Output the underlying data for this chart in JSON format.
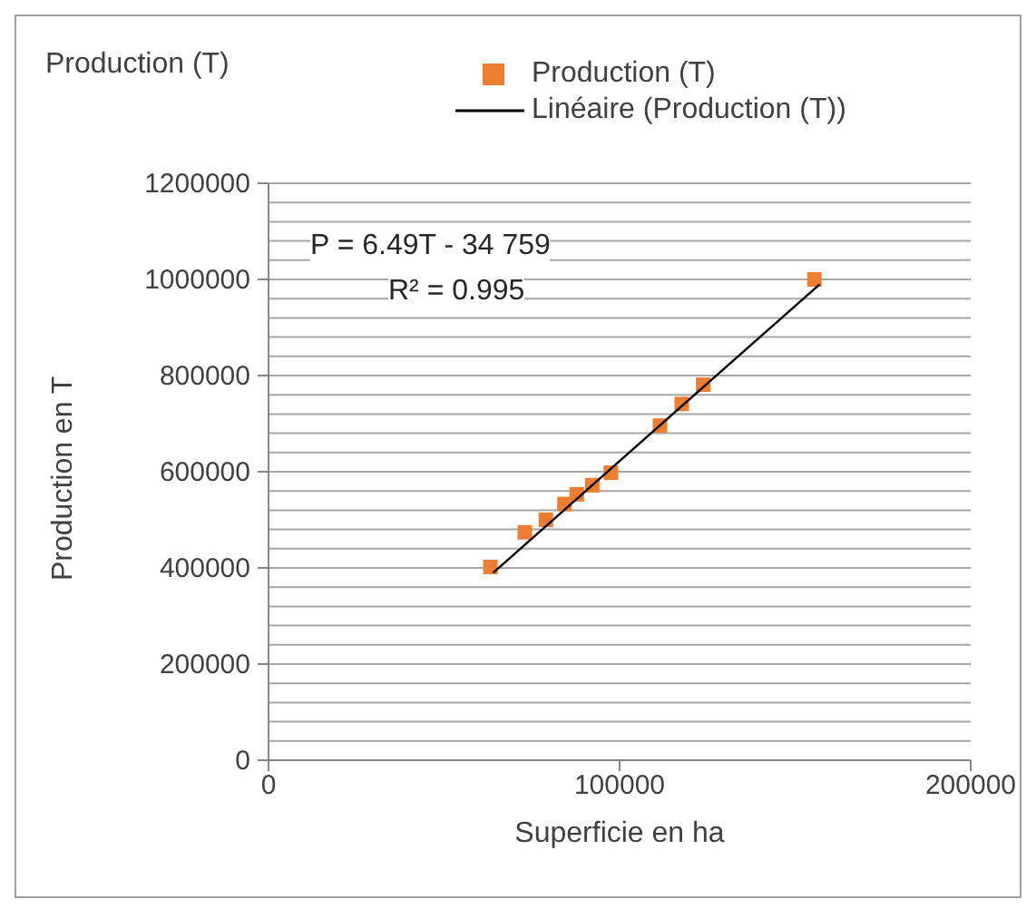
{
  "chart_data": {
    "type": "scatter",
    "title": "Production (T)",
    "xlabel": "Superficie en ha",
    "ylabel": "Production en T",
    "xlim": [
      0,
      200000
    ],
    "xticks": [
      0,
      100000,
      200000
    ],
    "ylim": [
      0,
      1200000
    ],
    "yticks": [
      0,
      {
        "value": 40000,
        "label": null
      },
      {
        "value": 80000,
        "label": null
      },
      {
        "value": 120000,
        "label": null
      },
      {
        "value": 160000,
        "label": null
      },
      200000,
      {
        "value": 240000,
        "label": null
      },
      {
        "value": 280000,
        "label": null
      },
      {
        "value": 320000,
        "label": null
      },
      {
        "value": 360000,
        "label": null
      },
      400000,
      {
        "value": 440000,
        "label": null
      },
      {
        "value": 480000,
        "label": null
      },
      {
        "value": 520000,
        "label": null
      },
      {
        "value": 560000,
        "label": null
      },
      600000,
      {
        "value": 640000,
        "label": null
      },
      {
        "value": 680000,
        "label": null
      },
      {
        "value": 720000,
        "label": null
      },
      {
        "value": 760000,
        "label": null
      },
      800000,
      {
        "value": 840000,
        "label": null
      },
      {
        "value": 880000,
        "label": null
      },
      {
        "value": 920000,
        "label": null
      },
      {
        "value": 960000,
        "label": null
      },
      1000000,
      {
        "value": 1040000,
        "label": null
      },
      {
        "value": 1080000,
        "label": null
      },
      {
        "value": 1120000,
        "label": null
      },
      {
        "value": 1160000,
        "label": null
      },
      1200000
    ],
    "grid": "y",
    "legend": "top right",
    "marker": "square",
    "annotations": [
      "P = 6.49T - 34 759",
      "R² = 0.995"
    ],
    "x": [
      63200,
      73000,
      79000,
      84300,
      87800,
      92200,
      97500,
      111500,
      117700,
      123800,
      155500
    ],
    "series": [
      {
        "name": "Production (T)",
        "color": "#ed7d31",
        "values": [
          402000,
          474000,
          500000,
          533000,
          553000,
          572000,
          598000,
          696000,
          741000,
          781000,
          1000000
        ]
      },
      {
        "name": "Linéaire (Production (T))",
        "type": "line",
        "color": "#000000",
        "line_style": "solid",
        "marker": "none",
        "x": [
          64000,
          157000
        ],
        "values": [
          390000,
          990000
        ]
      }
    ]
  }
}
